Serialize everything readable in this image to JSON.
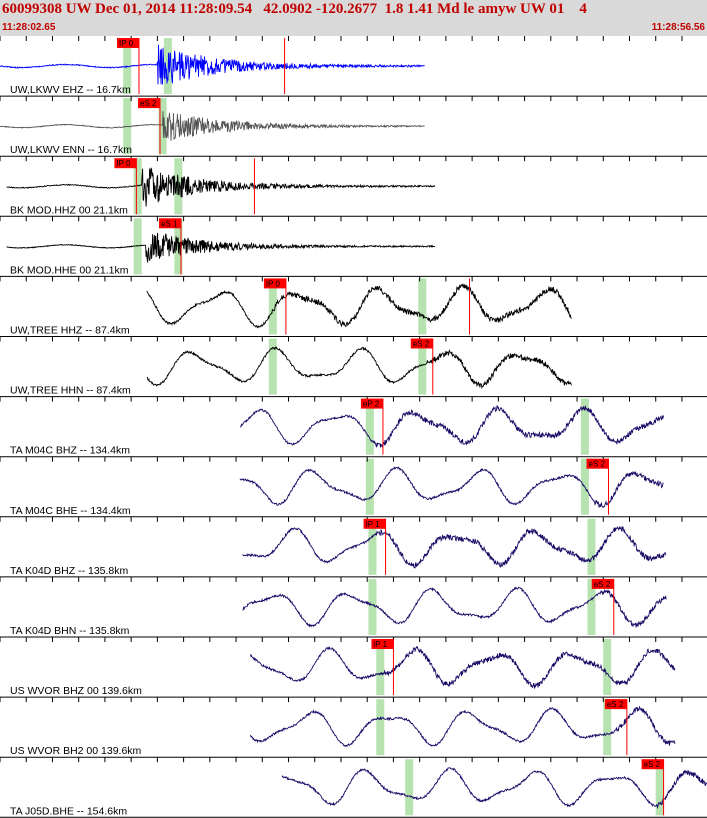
{
  "header": {
    "title": "60099308 UW Dec 01, 2014 11:28:09.54   42.0902 -120.2677  1.8 1.41 Md le amyw UW 01    4",
    "start_time": "11:28:02.65",
    "end_time": "11:28:56.56"
  },
  "colors": {
    "header_bg": "#d9d9d9",
    "header_text": "#c00000",
    "pick_box": "#ff0000",
    "pick_line": "#ff0000",
    "window": "#b6e3b0",
    "trace_blue": "#0000ff",
    "trace_gray": "#555555",
    "trace_black": "#000000",
    "trace_navy": "#1a0a66",
    "tick": "#000000"
  },
  "chart_data": {
    "type": "line",
    "x_unit": "seconds after 11:28:02.65",
    "xlim": [
      0,
      53.91
    ],
    "tick_interval_s": 2,
    "traces": [
      {
        "label": "UW,LKWV EHZ -- 16.7km",
        "color": "trace_blue",
        "start_s": 0.0,
        "end_s": 32.4,
        "arrival_s": 12.0,
        "style": "quake",
        "amp": 0.8,
        "picks": [
          {
            "label": "IP 0",
            "time_s": 10.6
          },
          {
            "label": "",
            "time_s": 21.7
          }
        ],
        "windows": [
          9.7,
          12.8
        ]
      },
      {
        "label": "UW,LKWV ENN -- 16.7km",
        "color": "trace_gray",
        "start_s": 0.0,
        "end_s": 32.4,
        "arrival_s": 12.4,
        "style": "quake",
        "amp": 0.6,
        "picks": [
          {
            "label": "eS 2",
            "time_s": 12.2
          }
        ],
        "windows": [
          9.7,
          12.4
        ]
      },
      {
        "label": "BK MOD.HHZ 00 21.1km",
        "color": "trace_black",
        "start_s": 0.5,
        "end_s": 33.2,
        "arrival_s": 10.8,
        "style": "quake",
        "amp": 0.75,
        "picks": [
          {
            "label": "IP 0",
            "time_s": 10.4
          },
          {
            "label": "",
            "time_s": 19.4
          }
        ],
        "windows": [
          10.5,
          13.6
        ]
      },
      {
        "label": "BK MOD.HHE 00 21.1km",
        "color": "trace_black",
        "start_s": 0.5,
        "end_s": 33.2,
        "arrival_s": 11.1,
        "style": "quake",
        "amp": 0.6,
        "picks": [
          {
            "label": "eS 1",
            "time_s": 13.8
          }
        ],
        "windows": [
          10.5,
          13.6
        ]
      },
      {
        "label": "UW,TREE HHZ -- 87.4km",
        "color": "trace_black",
        "start_s": 11.2,
        "end_s": 43.6,
        "arrival_s": 20.6,
        "style": "wave",
        "amp": 0.75,
        "picks": [
          {
            "label": "IP 0",
            "time_s": 21.8
          },
          {
            "label": "",
            "time_s": 35.8
          }
        ],
        "windows": [
          20.8,
          32.2
        ]
      },
      {
        "label": "UW,TREE HHN -- 87.4km",
        "color": "trace_black",
        "start_s": 11.2,
        "end_s": 43.6,
        "arrival_s": 32.5,
        "style": "wave",
        "amp": 0.7,
        "picks": [
          {
            "label": "eS 2",
            "time_s": 33.0
          }
        ],
        "windows": [
          20.8,
          32.2
        ]
      },
      {
        "label": "TA M04C BHZ -- 134.4km",
        "color": "trace_navy",
        "start_s": 18.3,
        "end_s": 50.6,
        "arrival_s": 28.5,
        "style": "wave",
        "amp": 0.7,
        "picks": [
          {
            "label": "eP 2",
            "time_s": 29.2
          }
        ],
        "windows": [
          28.2,
          44.6
        ]
      },
      {
        "label": "TA M04C BHE -- 134.4km",
        "color": "trace_navy",
        "start_s": 18.3,
        "end_s": 50.6,
        "arrival_s": 45.3,
        "style": "wave",
        "amp": 0.7,
        "picks": [
          {
            "label": "eS 2",
            "time_s": 46.4
          }
        ],
        "windows": [
          28.2,
          44.6
        ]
      },
      {
        "label": "TA K04D BHZ -- 135.8km",
        "color": "trace_navy",
        "start_s": 18.5,
        "end_s": 50.8,
        "arrival_s": 28.7,
        "style": "wave",
        "amp": 0.7,
        "picks": [
          {
            "label": "IP 1",
            "time_s": 29.4
          }
        ],
        "windows": [
          28.4,
          45.1
        ]
      },
      {
        "label": "TA K04D BHN -- 135.8km",
        "color": "trace_navy",
        "start_s": 18.5,
        "end_s": 50.8,
        "arrival_s": 45.8,
        "style": "wave",
        "amp": 0.7,
        "picks": [
          {
            "label": "eS 2",
            "time_s": 46.8
          }
        ],
        "windows": [
          28.4,
          45.1
        ]
      },
      {
        "label": "US WVOR BHZ 00 139.6km",
        "color": "trace_navy",
        "start_s": 19.1,
        "end_s": 51.5,
        "arrival_s": 29.3,
        "style": "wave",
        "amp": 0.7,
        "picks": [
          {
            "label": "iP 1",
            "time_s": 30.0
          }
        ],
        "windows": [
          29.0,
          46.3
        ]
      },
      {
        "label": "US WVOR BH2 00 139.6km",
        "color": "trace_navy",
        "start_s": 19.1,
        "end_s": 51.5,
        "arrival_s": 47.0,
        "style": "wave",
        "amp": 0.7,
        "picks": [
          {
            "label": "eS 2",
            "time_s": 47.8
          }
        ],
        "windows": [
          29.0,
          46.3
        ]
      },
      {
        "label": "TA J05D.BHE -- 154.6km",
        "color": "trace_navy",
        "start_s": 21.5,
        "end_s": 53.9,
        "arrival_s": 50.0,
        "style": "wave",
        "amp": 0.7,
        "picks": [
          {
            "label": "eS 2",
            "time_s": 50.6
          }
        ],
        "windows": [
          31.2,
          50.3
        ]
      }
    ]
  }
}
